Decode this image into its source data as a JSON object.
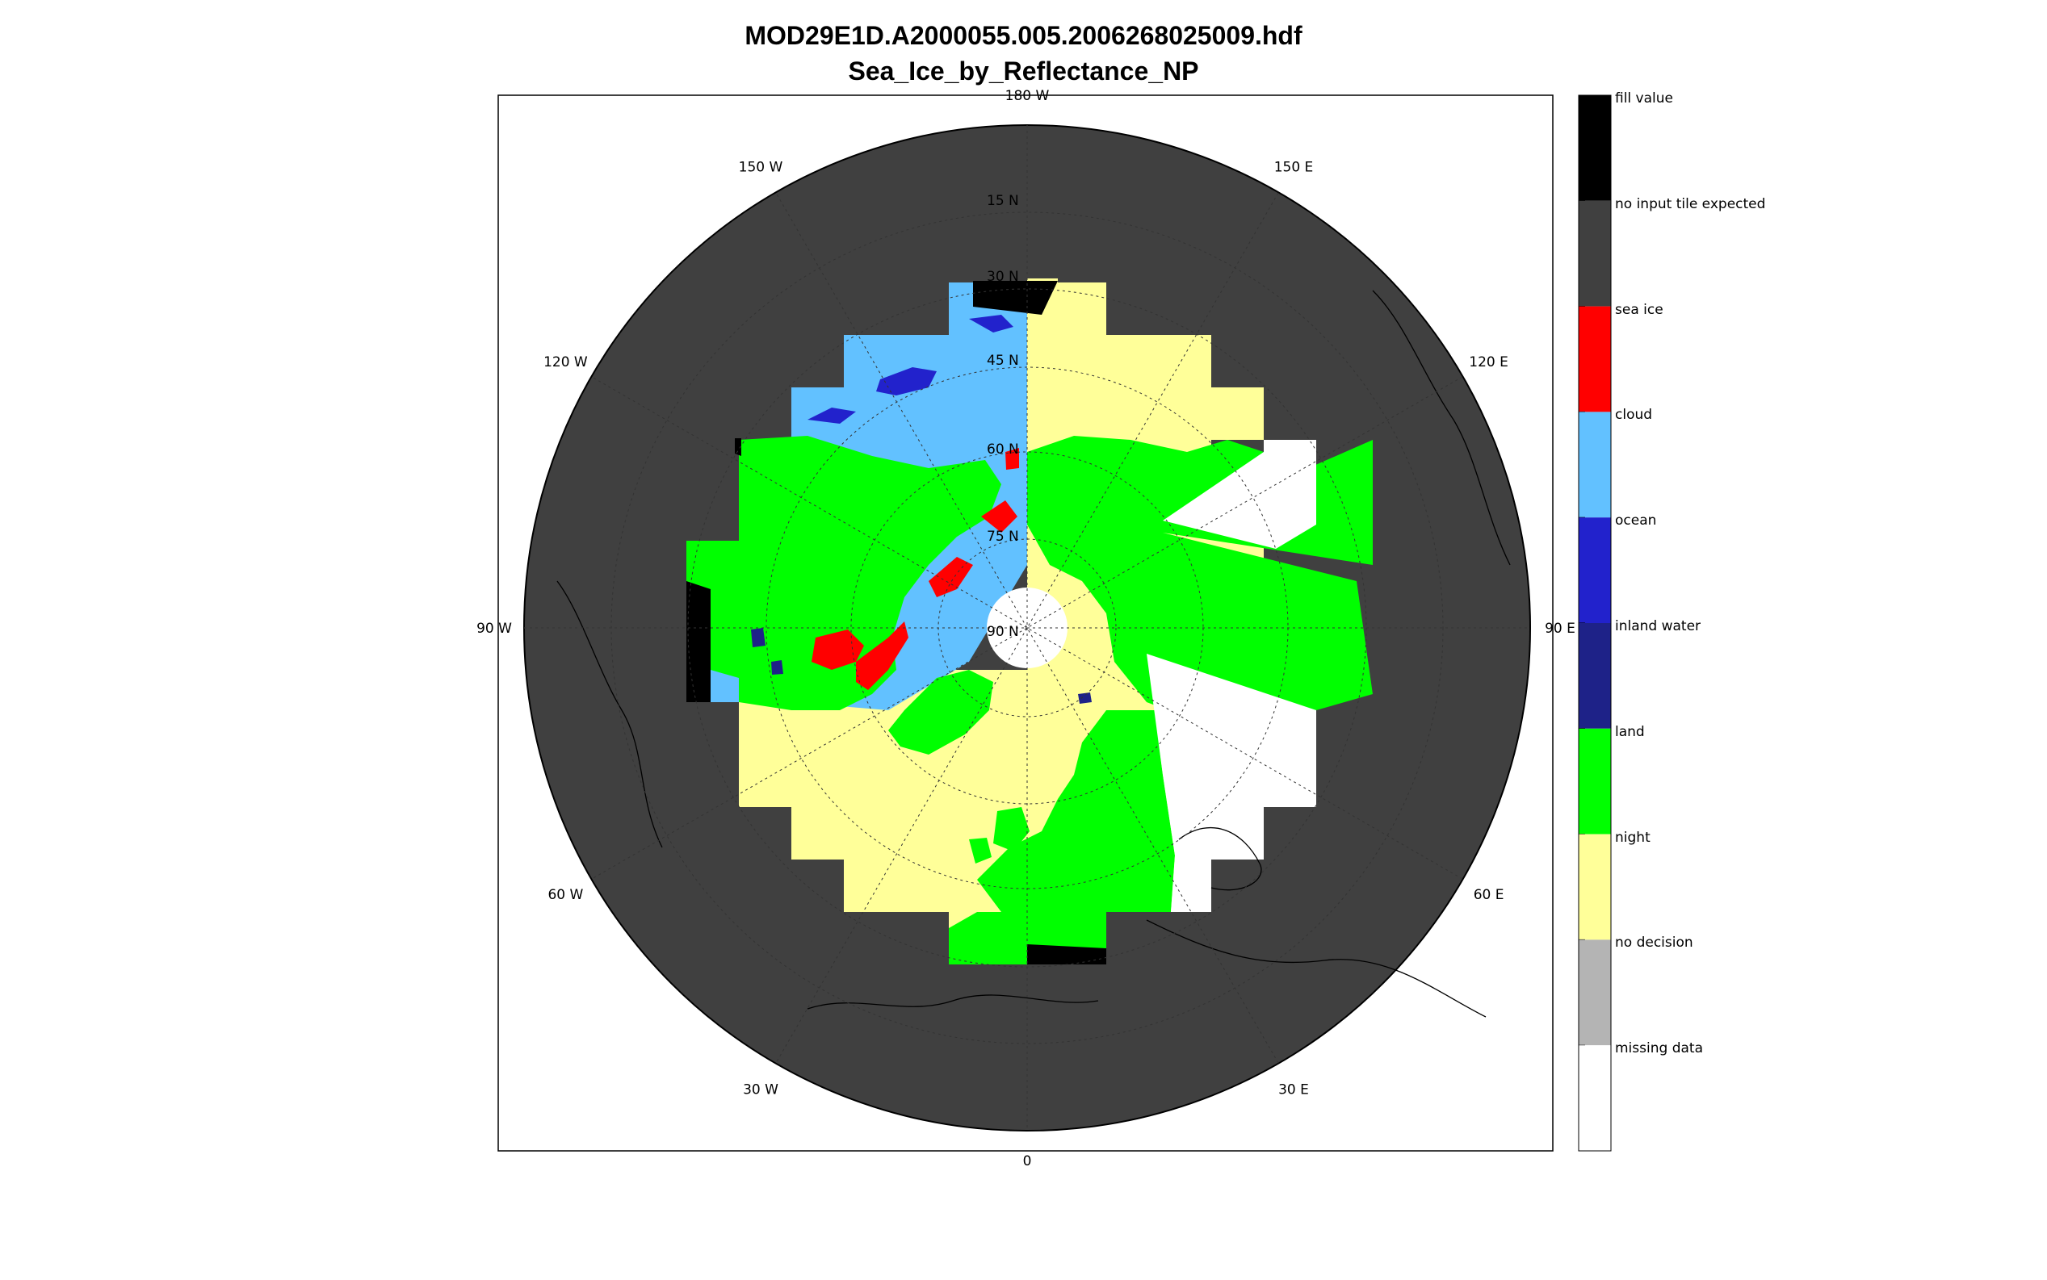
{
  "title": "MOD29E1D.A2000055.005.2006268025009.hdf",
  "subtitle": "Sea_Ice_by_Reflectance_NP",
  "map": {
    "projection": "north polar stereographic",
    "latitude_labels": [
      "90 N",
      "75 N",
      "60 N",
      "45 N",
      "30 N",
      "15 N"
    ],
    "longitude_labels": [
      {
        "text": "0",
        "lon": 0
      },
      {
        "text": "30 E",
        "lon": 30
      },
      {
        "text": "60 E",
        "lon": 60
      },
      {
        "text": "90 E",
        "lon": 90
      },
      {
        "text": "120 E",
        "lon": 120
      },
      {
        "text": "150 E",
        "lon": 150
      },
      {
        "text": "180 W",
        "lon": 180
      },
      {
        "text": "150 W",
        "lon": -150
      },
      {
        "text": "120 W",
        "lon": -120
      },
      {
        "text": "90 W",
        "lon": -90
      },
      {
        "text": "60 W",
        "lon": -60
      },
      {
        "text": "30 W",
        "lon": -30
      }
    ],
    "background_class": "no input tile expected"
  },
  "colorbar": {
    "classes": [
      {
        "label": "fill value",
        "color": "#000000"
      },
      {
        "label": "no input tile expected",
        "color": "#404040"
      },
      {
        "label": "sea ice",
        "color": "#ff0000"
      },
      {
        "label": "cloud",
        "color": "#62c1ff"
      },
      {
        "label": "ocean",
        "color": "#2222cc"
      },
      {
        "label": "inland water",
        "color": "#1e2288"
      },
      {
        "label": "land",
        "color": "#00ff00"
      },
      {
        "label": "night",
        "color": "#ffff99"
      },
      {
        "label": "no decision",
        "color": "#b4b4b4"
      },
      {
        "label": "missing data",
        "color": "#ffffff"
      }
    ]
  }
}
